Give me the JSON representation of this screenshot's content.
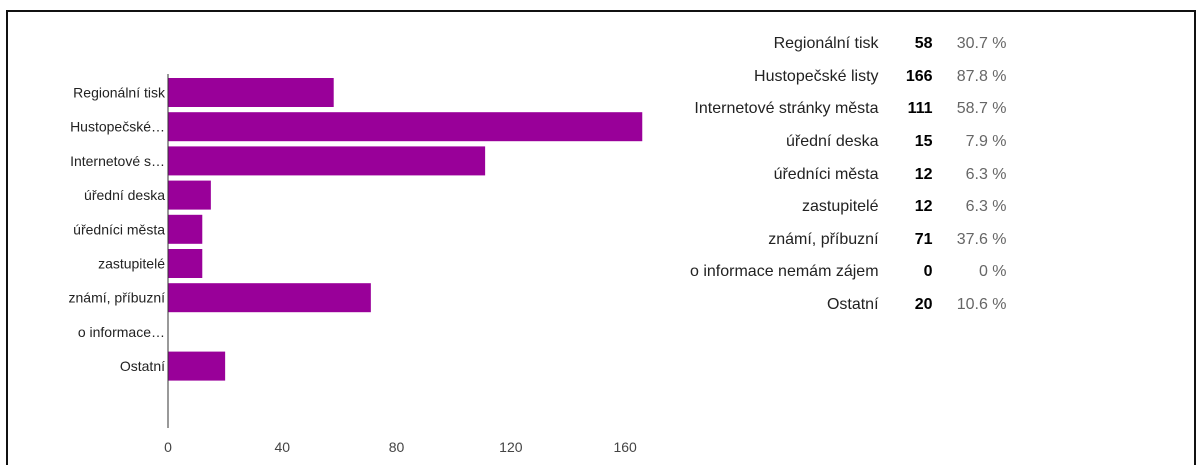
{
  "chart_data": {
    "type": "bar",
    "orientation": "horizontal",
    "categories": [
      "Regionální tisk",
      "Hustopečské…",
      "Internetové s…",
      "úřední deska",
      "úředníci města",
      "zastupitelé",
      "známí, příbuzní",
      "o informace…",
      "Ostatní"
    ],
    "values": [
      58,
      166,
      111,
      15,
      12,
      12,
      71,
      0,
      20
    ],
    "xticks": [
      "0",
      "40",
      "80",
      "120",
      "160"
    ],
    "xlim": [
      0,
      175
    ],
    "bar_color": "#990099",
    "grid": false
  },
  "table": {
    "rows": [
      {
        "label": "Regionální tisk",
        "count": "58",
        "percent": "30.7 %"
      },
      {
        "label": "Hustopečské listy",
        "count": "166",
        "percent": "87.8 %"
      },
      {
        "label": "Internetové stránky města",
        "count": "111",
        "percent": "58.7 %"
      },
      {
        "label": "úřední deska",
        "count": "15",
        "percent": "7.9 %"
      },
      {
        "label": "úředníci města",
        "count": "12",
        "percent": "6.3 %"
      },
      {
        "label": "zastupitelé",
        "count": "12",
        "percent": "6.3 %"
      },
      {
        "label": "známí, příbuzní",
        "count": "71",
        "percent": "37.6 %"
      },
      {
        "label": "o informace nemám zájem",
        "count": "0",
        "percent": "0 %"
      },
      {
        "label": "Ostatní",
        "count": "20",
        "percent": "10.6 %"
      }
    ]
  }
}
